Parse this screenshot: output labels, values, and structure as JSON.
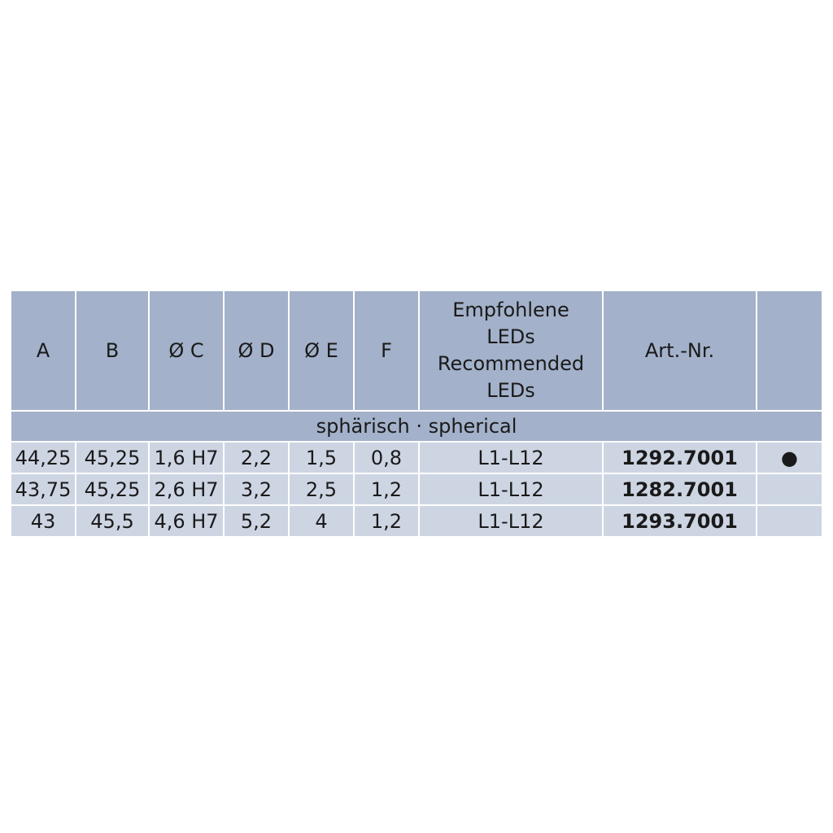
{
  "table": {
    "headers": [
      "A",
      "B",
      "Ø C",
      "Ø D",
      "Ø E",
      "F",
      "Empfohlene\nLEDs\nRecommended\nLEDs",
      "Art.-Nr.",
      ""
    ],
    "headers_led_lines": [
      "Empfohlene",
      "LEDs",
      "Recommended",
      "LEDs"
    ],
    "section": "sphärisch · spherical",
    "rows": [
      [
        "44,25",
        "45,25",
        "1,6 H7",
        "2,2",
        "1,5",
        "0,8",
        "L1-L12",
        "1292.7001",
        "●"
      ],
      [
        "43,75",
        "45,25",
        "2,6 H7",
        "3,2",
        "2,5",
        "1,2",
        "L1-L12",
        "1282.7001",
        ""
      ],
      [
        "43",
        "45,5",
        "4,6 H7",
        "5,2",
        "4",
        "1,2",
        "L1-L12",
        "1293.7001",
        ""
      ]
    ]
  },
  "colors": {
    "header_bg": "#a3b1ca",
    "row_bg": "#cdd5e3"
  }
}
